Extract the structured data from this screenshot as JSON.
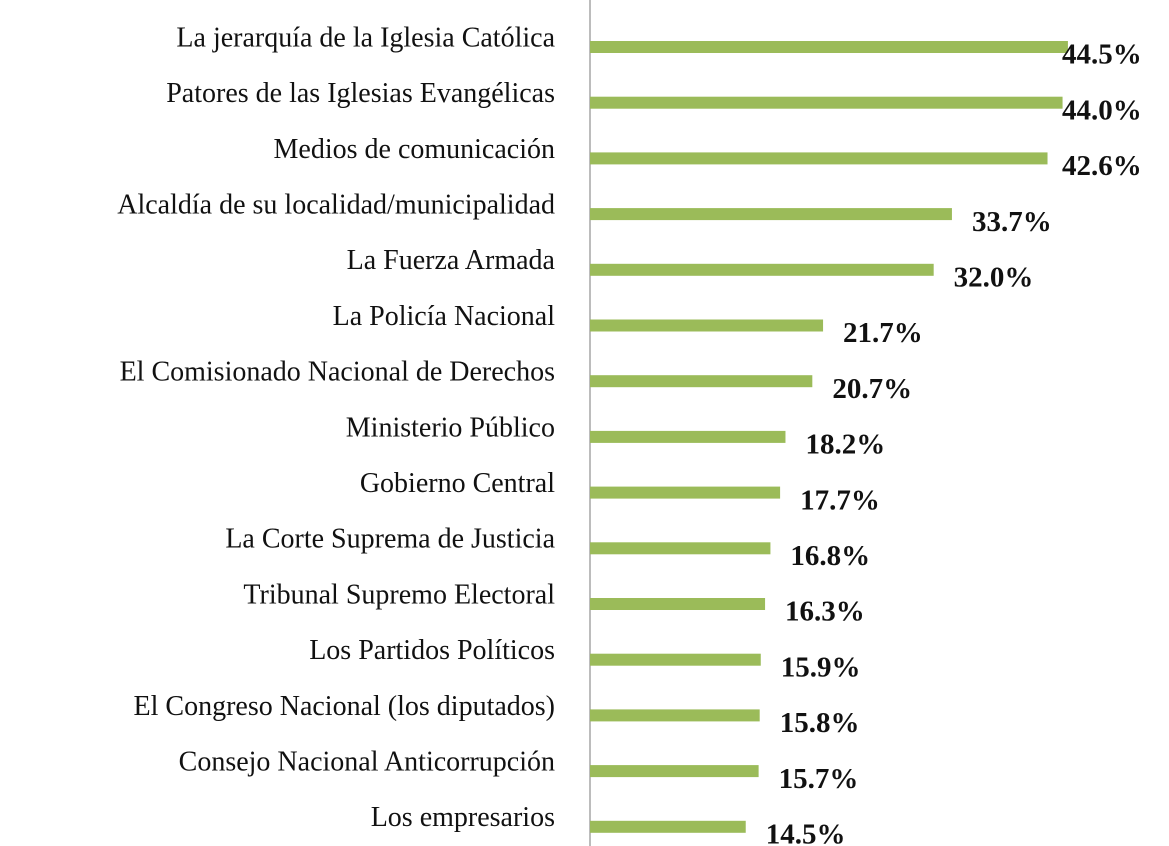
{
  "chart_data": {
    "type": "barh",
    "categories": [
      "La jerarquía de la Iglesia Católica",
      "Patores de las Iglesias Evangélicas",
      "Medios de comunicación",
      "Alcaldía de su localidad/municipalidad",
      "La Fuerza Armada",
      "La Policía Nacional",
      "El Comisionado Nacional de Derechos",
      "Ministerio Público",
      "Gobierno Central",
      "La Corte Suprema de Justicia",
      "Tribunal Supremo Electoral",
      "Los Partidos Políticos",
      "El Congreso Nacional (los diputados)",
      "Consejo Nacional Anticorrupción",
      "Los empresarios"
    ],
    "values": [
      44.5,
      44.0,
      42.6,
      33.7,
      32.0,
      21.7,
      20.7,
      18.2,
      17.7,
      16.8,
      16.3,
      15.9,
      15.8,
      15.7,
      14.5
    ],
    "value_labels": [
      "44.5%",
      "44.0%",
      "42.6%",
      "33.7%",
      "32.0%",
      "21.7%",
      "20.7%",
      "18.2%",
      "17.7%",
      "16.8%",
      "16.3%",
      "15.9%",
      "15.8%",
      "15.7%",
      "14.5%"
    ],
    "color": "#9bbb59"
  }
}
